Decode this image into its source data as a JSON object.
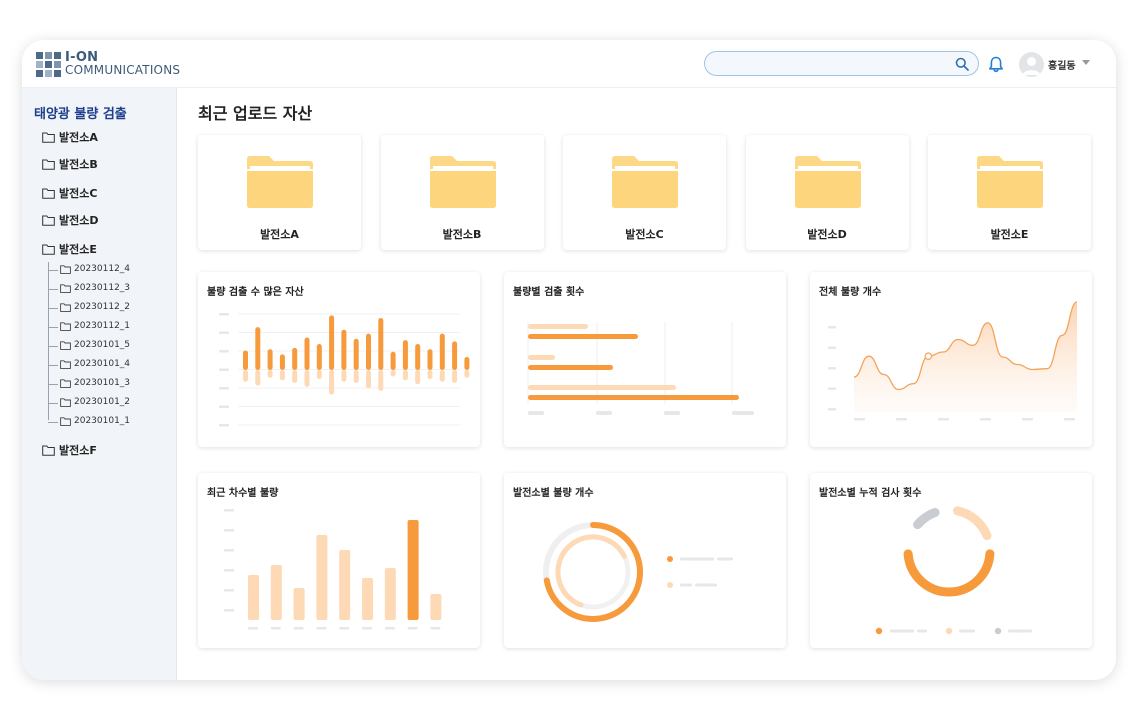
{
  "header": {
    "logo_line1": "I-ON",
    "logo_line2": "COMMUNICATIONS",
    "search_placeholder": "",
    "icons": {
      "search": "search-icon",
      "bell": "bell-icon",
      "avatar": "user-avatar-icon",
      "caret": "caret-down-icon"
    },
    "user_name": "홍길동"
  },
  "sidebar": {
    "title": "태양광 불량 검출",
    "plants": [
      "발전소A",
      "발전소B",
      "발전소C",
      "발전소D",
      "발전소E"
    ],
    "expanded_children": [
      "20230112_4",
      "20230112_3",
      "20230112_2",
      "20230112_1",
      "20230101_5",
      "20230101_4",
      "20230101_3",
      "20230101_2",
      "20230101_1"
    ],
    "last_plant": "발전소F"
  },
  "main": {
    "title": "최근 업로드 자산",
    "folders": [
      "발전소A",
      "발전소B",
      "발전소C",
      "발전소D",
      "발전소E"
    ],
    "charts": [
      "불량 검출 수 많은 자산",
      "불량별 검출 횟수",
      "전체 불량 개수",
      "최근 차수별 불량",
      "발전소별 불량 개수",
      "발전소별 누적 검사 횟수"
    ]
  },
  "colors": {
    "accent_orange": "#f79a3b",
    "light_orange": "#fdd9b5",
    "folder_yellow": "#fdd887",
    "title_blue": "#1d3f8c",
    "gray": "#e6e7e9"
  },
  "chart_data": [
    {
      "type": "bar",
      "title": "불량 검출 수 많은 자산",
      "series": [
        {
          "values": [
            1.5,
            3.3,
            1.6,
            1.2,
            1.7,
            2.5,
            2.0,
            4.2,
            3.1,
            2.4,
            2.8,
            4.0,
            1.4,
            2.3,
            2.0,
            1.6,
            2.8,
            2.2,
            1.0
          ]
        },
        {
          "values": [
            -0.9,
            -1.2,
            -0.6,
            -0.8,
            -1.0,
            -1.3,
            -0.7,
            -1.9,
            -0.9,
            -1.0,
            -1.4,
            -1.6,
            -0.5,
            -0.8,
            -1.1,
            -0.7,
            -0.9,
            -1.0,
            -0.6
          ]
        }
      ]
    },
    {
      "type": "bar",
      "title": "불량별 검출 횟수",
      "series": [
        {
          "values": [
            6,
            5,
            11
          ]
        },
        {
          "values": [
            9,
            6,
            15
          ]
        }
      ]
    },
    {
      "type": "area",
      "title": "전체 불량 개수",
      "values": [
        3.0,
        5.5,
        3.3,
        1.5,
        2.2,
        5.5,
        6.0,
        7.5,
        6.8,
        9.5,
        5.4,
        4.5,
        3.9,
        4.0,
        8.0,
        12.0
      ]
    },
    {
      "type": "bar",
      "title": "최근 차수별 불량",
      "values": [
        4.5,
        5.5,
        3.2,
        8.5,
        7.0,
        4.2,
        5.2,
        10.0,
        2.6
      ]
    },
    {
      "type": "pie",
      "title": "발전소별 불량 개수",
      "values": [
        72,
        28
      ]
    },
    {
      "type": "pie",
      "title": "발전소별 누적 검사 횟수",
      "values": [
        50,
        30,
        20
      ]
    }
  ]
}
